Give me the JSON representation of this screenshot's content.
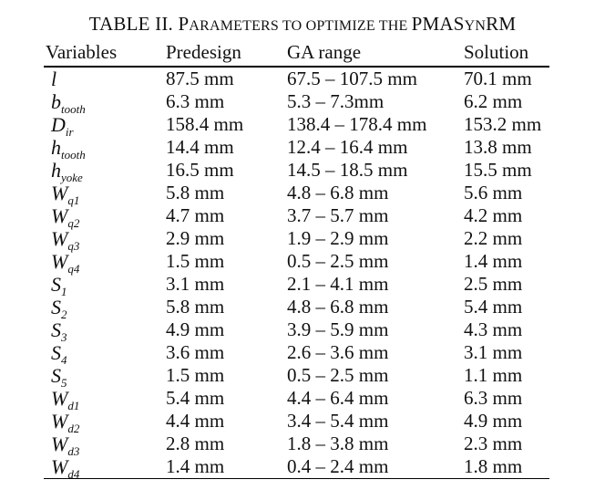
{
  "caption": {
    "label": "TABLE II.",
    "parts": [
      {
        "t": "P",
        "big": true
      },
      {
        "t": "ARAMETERS TO OPTIMIZE THE ",
        "big": false
      },
      {
        "t": "PMAS",
        "big": true
      },
      {
        "t": "YN",
        "big": false
      },
      {
        "t": "RM",
        "big": true
      }
    ]
  },
  "headers": [
    "Variables",
    "Predesign",
    "GA range",
    "Solution"
  ],
  "rows": [
    {
      "var": "l",
      "sub": "",
      "predesign": "87.5 mm",
      "ga_range": "67.5 – 107.5 mm",
      "solution": "70.1 mm"
    },
    {
      "var": "b",
      "sub": "tooth",
      "predesign": "6.3 mm",
      "ga_range": "5.3 – 7.3mm",
      "solution": "6.2 mm"
    },
    {
      "var": "D",
      "sub": "ir",
      "predesign": "158.4 mm",
      "ga_range": "138.4 – 178.4 mm",
      "solution": "153.2 mm"
    },
    {
      "var": "h",
      "sub": "tooth",
      "predesign": "14.4 mm",
      "ga_range": "12.4 – 16.4 mm",
      "solution": "13.8 mm"
    },
    {
      "var": "h",
      "sub": "yoke",
      "predesign": "16.5 mm",
      "ga_range": "14.5 – 18.5 mm",
      "solution": "15.5 mm"
    },
    {
      "var": "W",
      "sub": "q1",
      "predesign": "5.8 mm",
      "ga_range": "4.8 – 6.8 mm",
      "solution": "5.6 mm"
    },
    {
      "var": "W",
      "sub": "q2",
      "predesign": "4.7 mm",
      "ga_range": "3.7 – 5.7 mm",
      "solution": "4.2 mm"
    },
    {
      "var": "W",
      "sub": "q3",
      "predesign": "2.9 mm",
      "ga_range": "1.9 – 2.9 mm",
      "solution": "2.2 mm"
    },
    {
      "var": "W",
      "sub": "q4",
      "predesign": "1.5 mm",
      "ga_range": "0.5 – 2.5 mm",
      "solution": "1.4 mm"
    },
    {
      "var": "S",
      "sub": "1",
      "predesign": "3.1 mm",
      "ga_range": "2.1 – 4.1 mm",
      "solution": "2.5 mm"
    },
    {
      "var": "S",
      "sub": "2",
      "predesign": "5.8 mm",
      "ga_range": "4.8 – 6.8 mm",
      "solution": "5.4 mm"
    },
    {
      "var": "S",
      "sub": "3",
      "predesign": "4.9 mm",
      "ga_range": "3.9 – 5.9 mm",
      "solution": "4.3 mm"
    },
    {
      "var": "S",
      "sub": "4",
      "predesign": "3.6 mm",
      "ga_range": "2.6 – 3.6 mm",
      "solution": "3.1 mm"
    },
    {
      "var": "S",
      "sub": "5",
      "predesign": "1.5 mm",
      "ga_range": "0.5 – 2.5 mm",
      "solution": "1.1 mm"
    },
    {
      "var": "W",
      "sub": "d1",
      "predesign": "5.4 mm",
      "ga_range": "4.4 – 6.4 mm",
      "solution": "6.3 mm"
    },
    {
      "var": "W",
      "sub": "d2",
      "predesign": "4.4 mm",
      "ga_range": "3.4 – 5.4 mm",
      "solution": "4.9 mm"
    },
    {
      "var": "W",
      "sub": "d3",
      "predesign": "2.8 mm",
      "ga_range": "1.8 – 3.8 mm",
      "solution": "2.3 mm"
    },
    {
      "var": "W",
      "sub": "d4",
      "predesign": "1.4 mm",
      "ga_range": "0.4 – 2.4 mm",
      "solution": "1.8 mm"
    }
  ]
}
